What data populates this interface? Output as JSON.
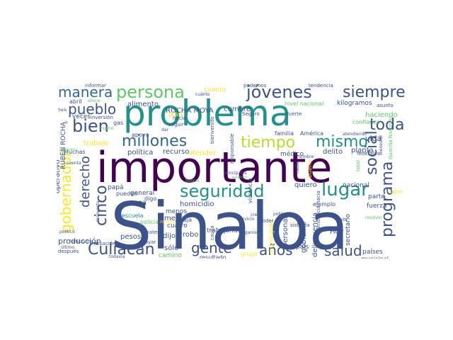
{
  "cloud": {
    "words": [
      {
        "text": "Sinaloa",
        "color": "#3b528b"
      },
      {
        "text": "importante",
        "color": "#440154"
      },
      {
        "text": "problema",
        "color": "#21918c"
      },
      {
        "text": "persona",
        "color": "#5ec962"
      },
      {
        "text": "jóvenes",
        "color": "#3b528b"
      },
      {
        "text": "siempre",
        "color": "#3b528b"
      },
      {
        "text": "manera",
        "color": "#31688e"
      },
      {
        "text": "pueblo",
        "color": "#3b528b"
      },
      {
        "text": "bien",
        "color": "#3b528b"
      },
      {
        "text": "millones",
        "color": "#31688e"
      },
      {
        "text": "tiempo",
        "color": "#b5de2b"
      },
      {
        "text": "mismo",
        "color": "#21918c"
      },
      {
        "text": "toda",
        "color": "#3b528b"
      },
      {
        "text": "seguridad",
        "color": "#21918c"
      },
      {
        "text": "lugar",
        "color": "#21918c"
      },
      {
        "text": "social",
        "color": "#3b528b"
      },
      {
        "text": "programa",
        "color": "#3b528b"
      },
      {
        "text": "gobernador",
        "color": "#fde725"
      },
      {
        "text": "derecho",
        "color": "#3b528b"
      },
      {
        "text": "cinco",
        "color": "#3b528b"
      },
      {
        "text": "Culiacán",
        "color": "#3b528b"
      },
      {
        "text": "gente",
        "color": "#3b528b"
      },
      {
        "text": "años",
        "color": "#3b528b"
      },
      {
        "text": "salud",
        "color": "#3b528b"
      },
      {
        "text": "ROCHA MOYA",
        "color": "#3b528b"
      },
      {
        "text": "RUBÉN ROCHA",
        "color": "#3b528b"
      },
      {
        "text": "alimento",
        "color": "#3b528b"
      },
      {
        "text": "cumbre",
        "color": "#3b528b"
      },
      {
        "text": "cuanto",
        "color": "#fde725"
      },
      {
        "text": "nivel nacional",
        "color": "#5ec962"
      },
      {
        "text": "kilogramos",
        "color": "#3b528b"
      },
      {
        "text": "haciendo",
        "color": "#5ec962"
      },
      {
        "text": "vida",
        "color": "#3b528b"
      },
      {
        "text": "planta",
        "color": "#3b528b"
      },
      {
        "text": "delito",
        "color": "#3b528b"
      },
      {
        "text": "médico",
        "color": "#3b528b"
      },
      {
        "text": "política",
        "color": "#3b528b"
      },
      {
        "text": "recurso",
        "color": "#3b528b"
      },
      {
        "text": "atender",
        "color": "#fde725"
      },
      {
        "text": "trabajo",
        "color": "#fde725"
      },
      {
        "text": "veces",
        "color": "#3b528b"
      },
      {
        "text": "plan",
        "color": "#fde725"
      },
      {
        "text": "familia",
        "color": "#3b528b"
      },
      {
        "text": "América",
        "color": "#3b528b"
      },
      {
        "text": "quiero",
        "color": "#3b528b"
      },
      {
        "text": "nacional",
        "color": "#3b528b"
      },
      {
        "text": "parte",
        "color": "#3b528b"
      },
      {
        "text": "fuerza",
        "color": "#3b528b"
      },
      {
        "text": "homicidio",
        "color": "#3b528b"
      },
      {
        "text": "mejor",
        "color": "#3b528b"
      },
      {
        "text": "menos",
        "color": "#3b528b"
      },
      {
        "text": "cuatro",
        "color": "#3b528b"
      },
      {
        "text": "general",
        "color": "#3b528b"
      },
      {
        "text": "cosa",
        "color": "#3b528b"
      },
      {
        "text": "dijo",
        "color": "#3b528b"
      },
      {
        "text": "robo",
        "color": "#3b528b"
      },
      {
        "text": "pesos",
        "color": "#3b528b"
      },
      {
        "text": "trabajando",
        "color": "#3b528b"
      },
      {
        "text": "personal",
        "color": "#3b528b"
      },
      {
        "text": "municipios",
        "color": "#fde725"
      },
      {
        "text": "gobierno",
        "color": "#3b528b"
      },
      {
        "text": "Hoy",
        "color": "#3b528b"
      },
      {
        "text": "secretario",
        "color": "#3b528b"
      },
      {
        "text": "producción",
        "color": "#3b528b"
      },
      {
        "text": "sólo",
        "color": "#3b528b"
      },
      {
        "text": "camino",
        "color": "#5ec962"
      },
      {
        "text": "resultado",
        "color": "#3b528b"
      },
      {
        "text": "grupo",
        "color": "#fde725"
      },
      {
        "text": "país",
        "color": "#3b528b"
      },
      {
        "text": "delincuencia",
        "color": "#3b528b"
      },
      {
        "text": "países",
        "color": "#3b528b"
      },
      {
        "text": "municipal",
        "color": "#3b528b"
      },
      {
        "text": "buena",
        "color": "#fde725"
      },
      {
        "text": "operativo",
        "color": "#3b528b"
      },
      {
        "text": "violencia",
        "color": "#3b528b"
      },
      {
        "text": "ejemplo",
        "color": "#3b528b"
      },
      {
        "text": "confianza",
        "color": "#5ec962"
      },
      {
        "text": "papá",
        "color": "#3b528b"
      },
      {
        "text": "pueden",
        "color": "#3b528b"
      },
      {
        "text": "digo",
        "color": "#3b528b"
      },
      {
        "text": "escuela",
        "color": "#21918c"
      },
      {
        "text": "policía",
        "color": "#5ec962"
      },
      {
        "text": "baja",
        "color": "#3b528b"
      },
      {
        "text": "Muchas",
        "color": "#3b528b"
      },
      {
        "text": "apoyo",
        "color": "#3b528b"
      },
      {
        "text": "gas",
        "color": "#3b528b"
      },
      {
        "text": "inversión",
        "color": "#3b528b"
      },
      {
        "text": "bienvenido",
        "color": "#3b528b"
      },
      {
        "text": "seguir",
        "color": "#3b528b"
      },
      {
        "text": "informar",
        "color": "#3b528b"
      },
      {
        "text": "abril",
        "color": "#3b528b"
      },
      {
        "text": "podemos",
        "color": "#3b528b"
      },
      {
        "text": "tendencia",
        "color": "#3b528b"
      },
      {
        "text": "asunto",
        "color": "#3b528b"
      },
      {
        "text": "creo",
        "color": "#3b528b"
      },
      {
        "text": "poder",
        "color": "#3b528b"
      },
      {
        "text": "siete",
        "color": "#3b528b"
      },
      {
        "text": "Fuerte",
        "color": "#3b528b"
      },
      {
        "text": "sistema",
        "color": "#3b528b"
      },
      {
        "text": "servicio",
        "color": "#3b528b"
      },
      {
        "text": "causa",
        "color": "#3b528b"
      },
      {
        "text": "mundo",
        "color": "#fde725"
      },
      {
        "text": "materia",
        "color": "#3b528b"
      },
      {
        "text": "hacia",
        "color": "#3b528b"
      },
      {
        "text": "situación",
        "color": "#3b528b"
      },
      {
        "text": "apoyar",
        "color": "#3b528b"
      },
      {
        "text": "después",
        "color": "#3b528b"
      },
      {
        "text": "político",
        "color": "#3b528b"
      },
      {
        "text": "todavía",
        "color": "#3b528b"
      },
      {
        "text": "Seguro",
        "color": "#3b528b"
      },
      {
        "text": "responsable",
        "color": "#3b528b"
      },
      {
        "text": "evento",
        "color": "#5ec962"
      },
      {
        "text": "hombre",
        "color": "#3b528b"
      },
      {
        "text": "federales",
        "color": "#3b528b"
      },
      {
        "text": "Bienestar",
        "color": "#3b528b"
      },
      {
        "text": "Guardia Nacional",
        "color": "#5ec962"
      },
      {
        "text": "saber",
        "color": "#fde725"
      },
      {
        "text": "total",
        "color": "#5ec962"
      },
      {
        "text": "cuenta",
        "color": "#3b528b"
      },
      {
        "text": "respuesta",
        "color": "#3b528b"
      },
      {
        "text": "organismo",
        "color": "#3b528b"
      },
      {
        "text": "población",
        "color": "#3b528b"
      },
      {
        "text": "tendencia hacia",
        "color": "#3b528b"
      },
      {
        "text": "atendiendo",
        "color": "#3b528b"
      },
      {
        "text": "cuánto",
        "color": "#3b528b"
      },
      {
        "text": "Seis",
        "color": "#3b528b"
      },
      {
        "text": "dar",
        "color": "#3b528b"
      },
      {
        "text": "fertilizante",
        "color": "#3b528b"
      },
      {
        "text": "buscar",
        "color": "#5ec962"
      },
      {
        "text": "resolver",
        "color": "#5ec962"
      },
      {
        "text": "nadie",
        "color": "#3b528b"
      },
      {
        "text": "último",
        "color": "#3b528b"
      },
      {
        "text": "lugares",
        "color": "#5ec962"
      },
      {
        "text": "principales",
        "color": "#3b528b"
      },
      {
        "text": "mucho",
        "color": "#5ec962"
      },
      {
        "text": "ir",
        "color": "#3b528b"
      },
      {
        "text": "ahora",
        "color": "#5ec962"
      }
    ]
  }
}
